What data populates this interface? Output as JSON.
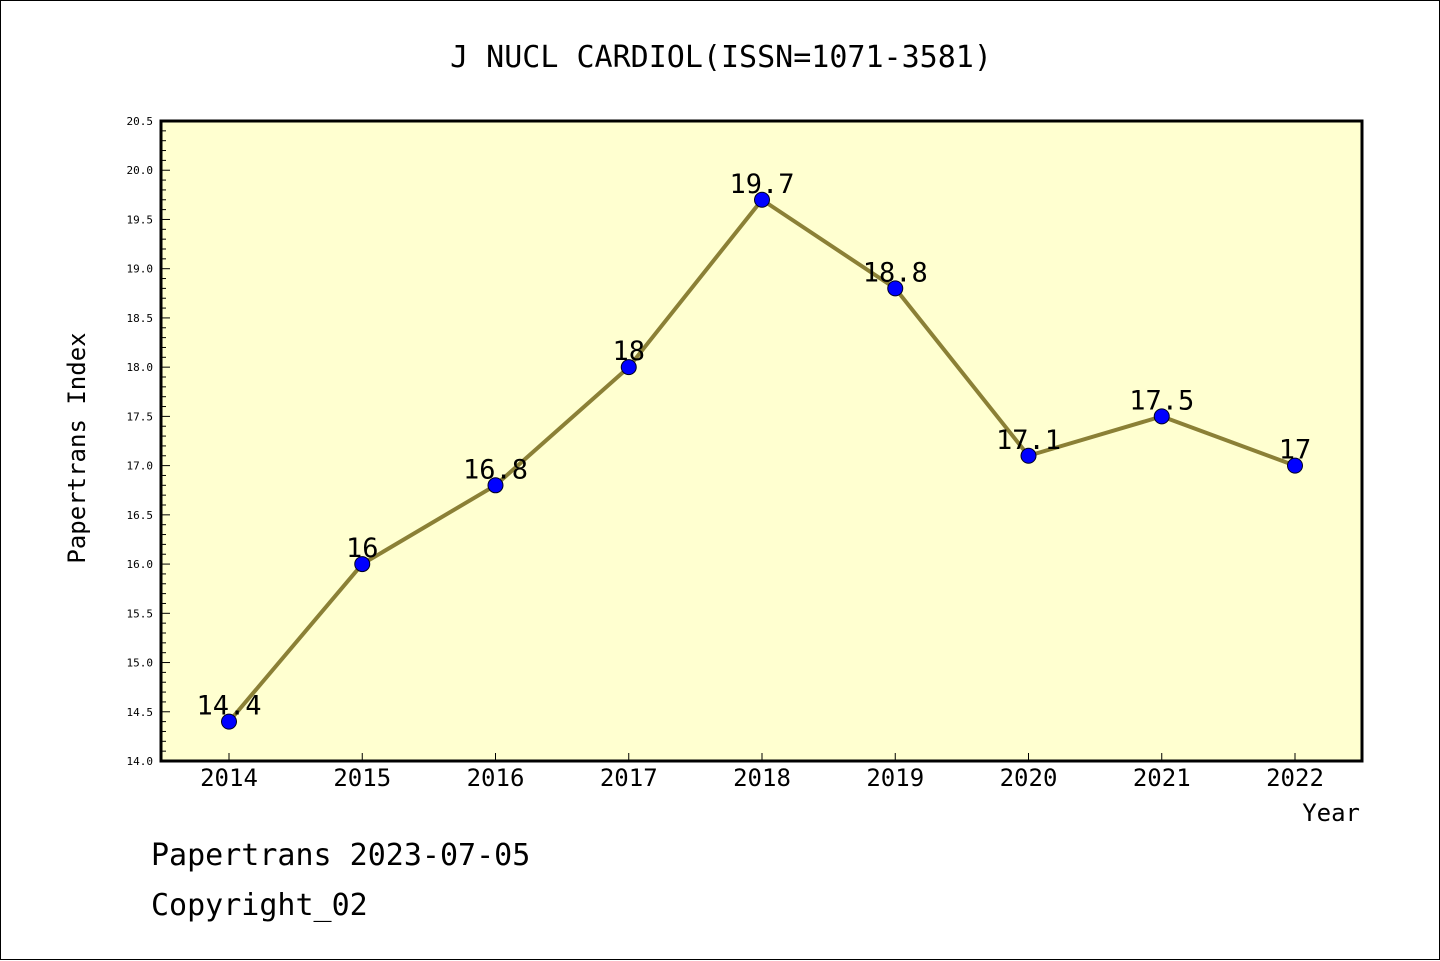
{
  "chart_data": {
    "type": "line",
    "title": "J NUCL CARDIOL(ISSN=1071-3581)",
    "xlabel": "Year",
    "ylabel": "Papertrans Index",
    "categories": [
      "2014",
      "2015",
      "2016",
      "2017",
      "2018",
      "2019",
      "2020",
      "2021",
      "2022"
    ],
    "series": [
      {
        "values": [
          14.4,
          16,
          16.8,
          18,
          19.7,
          18.8,
          17.1,
          17.5,
          17
        ]
      }
    ],
    "data_labels": [
      "14.4",
      "16",
      "16.8",
      "18",
      "19.7",
      "18.8",
      "17.1",
      "17.5",
      "17"
    ],
    "ylim": [
      14.0,
      20.5
    ],
    "yticks": [
      "14.0",
      "14.5",
      "15.0",
      "15.5",
      "16.0",
      "16.5",
      "17.0",
      "17.5",
      "18.0",
      "18.5",
      "19.0",
      "19.5",
      "20.0",
      "20.5"
    ],
    "grid": false,
    "colors": {
      "plot_background": "#ffffd0",
      "line": "#8b8036",
      "marker": "#0000ff"
    }
  },
  "footer": {
    "line1": "Papertrans 2023-07-05",
    "line2": "Copyright_02"
  }
}
